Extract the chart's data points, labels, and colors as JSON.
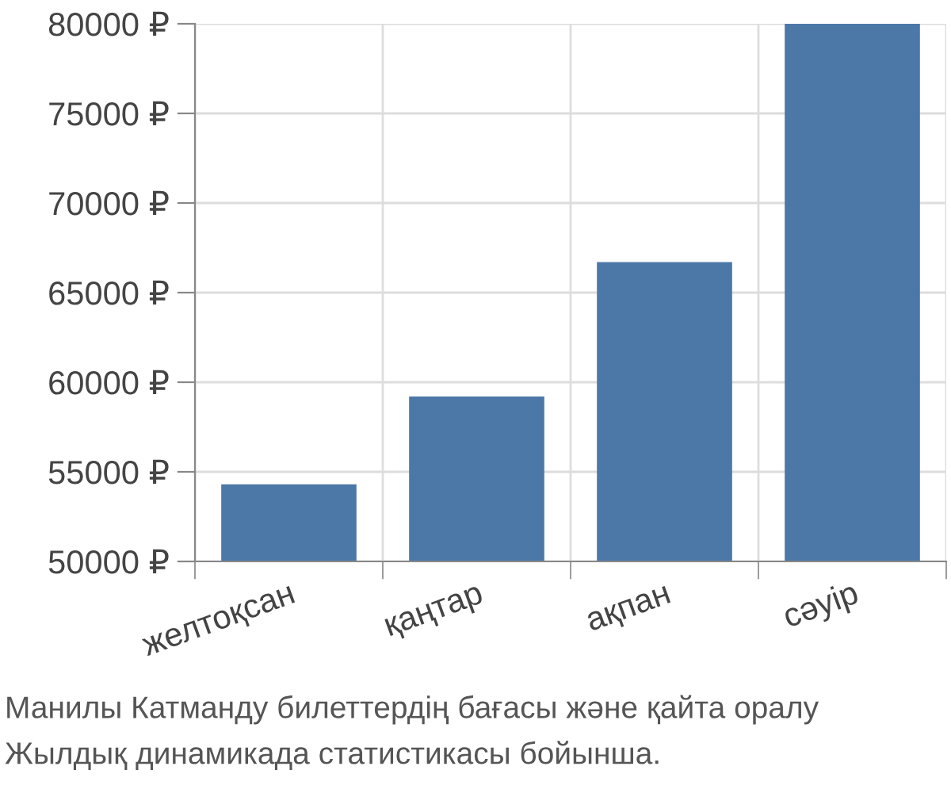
{
  "chart_data": {
    "type": "bar",
    "categories": [
      "желтоқсан",
      "қаңтар",
      "ақпан",
      "сәуір"
    ],
    "values": [
      54300,
      59200,
      66700,
      80000
    ],
    "color": "#4c78a8",
    "ylim": [
      50000,
      80000
    ],
    "yticks": [
      {
        "value": 50000,
        "label": "50000 ₽"
      },
      {
        "value": 55000,
        "label": "55000 ₽"
      },
      {
        "value": 60000,
        "label": "60000 ₽"
      },
      {
        "value": 65000,
        "label": "65000 ₽"
      },
      {
        "value": 70000,
        "label": "70000 ₽"
      },
      {
        "value": 75000,
        "label": "75000 ₽"
      },
      {
        "value": 80000,
        "label": "80000 ₽"
      }
    ],
    "grid": true,
    "annotations": [
      "Манилы Катманду билеттердің бағасы және қайта оралу",
      "Жылдық динамикада статистикасы бойынша."
    ]
  }
}
